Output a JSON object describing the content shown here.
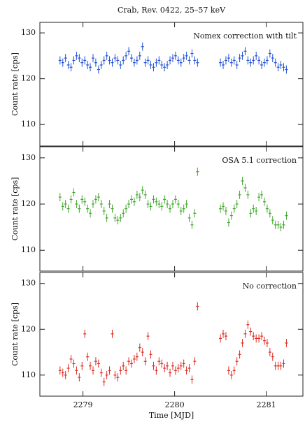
{
  "chart_data": [
    {
      "type": "scatter",
      "title": "Crab, Rev. 0422, 25–57 keV",
      "annotation": "Nomex correction with tilt",
      "y_label": "Count rate [cps]",
      "color": "#1f4fd6",
      "xlim": [
        2278.53,
        2281.4
      ],
      "ylim": [
        105.3,
        132.3
      ],
      "yticks": [
        110,
        120,
        130
      ],
      "yerr": 0.9,
      "x": [
        2278.75,
        2278.78,
        2278.81,
        2278.84,
        2278.87,
        2278.9,
        2278.93,
        2278.96,
        2278.99,
        2279.02,
        2279.05,
        2279.08,
        2279.11,
        2279.14,
        2279.17,
        2279.2,
        2279.23,
        2279.26,
        2279.29,
        2279.32,
        2279.35,
        2279.38,
        2279.41,
        2279.44,
        2279.47,
        2279.5,
        2279.53,
        2279.56,
        2279.59,
        2279.62,
        2279.65,
        2279.68,
        2279.71,
        2279.74,
        2279.77,
        2279.8,
        2279.83,
        2279.86,
        2279.89,
        2279.92,
        2279.95,
        2279.98,
        2280.01,
        2280.04,
        2280.07,
        2280.1,
        2280.13,
        2280.16,
        2280.19,
        2280.22,
        2280.25,
        2280.5,
        2280.53,
        2280.56,
        2280.59,
        2280.62,
        2280.65,
        2280.68,
        2280.71,
        2280.74,
        2280.77,
        2280.8,
        2280.83,
        2280.86,
        2280.89,
        2280.92,
        2280.95,
        2280.98,
        2281.01,
        2281.04,
        2281.07,
        2281.1,
        2281.13,
        2281.16,
        2281.19,
        2281.22
      ],
      "values": [
        124,
        123.5,
        124.5,
        123,
        122.5,
        124,
        125,
        124.5,
        123.5,
        124,
        123,
        122.5,
        124.5,
        123.5,
        122,
        123,
        124,
        125,
        124,
        123.5,
        124.5,
        124,
        123,
        124,
        125,
        126,
        124.5,
        123.5,
        124,
        125,
        127,
        123.5,
        124,
        123,
        122.5,
        123.5,
        124,
        123,
        122.5,
        123,
        124,
        124.5,
        125,
        124,
        123.5,
        124.5,
        125,
        124,
        125.5,
        124,
        123.5,
        123.5,
        123,
        124,
        124.5,
        123.5,
        124,
        123,
        124.5,
        125,
        126,
        124,
        123.5,
        124,
        125,
        124,
        123,
        123.5,
        124,
        125.5,
        124.5,
        123.5,
        122.5,
        123,
        122.5,
        122
      ]
    },
    {
      "type": "scatter",
      "annotation": "OSA 5.1 correction",
      "y_label": "Count rate [cps]",
      "color": "#3fa82a",
      "xlim": [
        2278.53,
        2281.4
      ],
      "ylim": [
        105.5,
        132.4
      ],
      "yticks": [
        110,
        120,
        130
      ],
      "yerr": 0.9,
      "x": [
        2278.75,
        2278.78,
        2278.81,
        2278.84,
        2278.87,
        2278.9,
        2278.93,
        2278.96,
        2278.99,
        2279.02,
        2279.05,
        2279.08,
        2279.11,
        2279.14,
        2279.17,
        2279.2,
        2279.23,
        2279.26,
        2279.29,
        2279.32,
        2279.35,
        2279.38,
        2279.41,
        2279.44,
        2279.47,
        2279.5,
        2279.53,
        2279.56,
        2279.59,
        2279.62,
        2279.65,
        2279.68,
        2279.71,
        2279.74,
        2279.77,
        2279.8,
        2279.83,
        2279.86,
        2279.89,
        2279.92,
        2279.95,
        2279.98,
        2280.01,
        2280.04,
        2280.07,
        2280.1,
        2280.13,
        2280.16,
        2280.19,
        2280.22,
        2280.25,
        2280.5,
        2280.53,
        2280.56,
        2280.59,
        2280.62,
        2280.65,
        2280.68,
        2280.71,
        2280.74,
        2280.77,
        2280.8,
        2280.83,
        2280.86,
        2280.89,
        2280.92,
        2280.95,
        2280.98,
        2281.01,
        2281.04,
        2281.07,
        2281.1,
        2281.13,
        2281.16,
        2281.19,
        2281.22
      ],
      "values": [
        121.5,
        119.5,
        120,
        119,
        121,
        122.5,
        120,
        119,
        121,
        120.5,
        119,
        118,
        120,
        121,
        121.5,
        120,
        118.5,
        117,
        120,
        119,
        117,
        116.5,
        117,
        118,
        119,
        120,
        121,
        120.5,
        122,
        121.5,
        123,
        122,
        120,
        119.5,
        121,
        120.5,
        120,
        119.5,
        121,
        120,
        119,
        120,
        121,
        120,
        118.5,
        119,
        120,
        117,
        115.5,
        118,
        127,
        119,
        119.5,
        118.5,
        116,
        117.5,
        119,
        120,
        122,
        125,
        123.5,
        122,
        118,
        119,
        118.5,
        121.5,
        122,
        120.5,
        119,
        118,
        116.5,
        115.5,
        115.5,
        115,
        115.5,
        117.5
      ]
    },
    {
      "type": "scatter",
      "annotation": "No correction",
      "y_label": "Count rate [cps]",
      "x_label": "Time [MJD]",
      "color": "#e0281e",
      "xlim": [
        2278.53,
        2281.4
      ],
      "ylim": [
        105.4,
        132.4
      ],
      "yticks": [
        110,
        120,
        130
      ],
      "xticks": [
        2279,
        2280,
        2281
      ],
      "yerr": 0.9,
      "x": [
        2278.75,
        2278.78,
        2278.81,
        2278.84,
        2278.87,
        2278.9,
        2278.93,
        2278.96,
        2278.99,
        2279.02,
        2279.05,
        2279.08,
        2279.11,
        2279.14,
        2279.17,
        2279.2,
        2279.23,
        2279.26,
        2279.29,
        2279.32,
        2279.35,
        2279.38,
        2279.41,
        2279.44,
        2279.47,
        2279.5,
        2279.53,
        2279.56,
        2279.59,
        2279.62,
        2279.65,
        2279.68,
        2279.71,
        2279.74,
        2279.77,
        2279.8,
        2279.83,
        2279.86,
        2279.89,
        2279.92,
        2279.95,
        2279.98,
        2280.01,
        2280.04,
        2280.07,
        2280.1,
        2280.13,
        2280.16,
        2280.19,
        2280.22,
        2280.25,
        2280.5,
        2280.53,
        2280.56,
        2280.59,
        2280.62,
        2280.65,
        2280.68,
        2280.71,
        2280.74,
        2280.77,
        2280.8,
        2280.83,
        2280.86,
        2280.89,
        2280.92,
        2280.95,
        2280.98,
        2281.01,
        2281.04,
        2281.07,
        2281.1,
        2281.13,
        2281.16,
        2281.19,
        2281.22
      ],
      "values": [
        111,
        110.5,
        110,
        111.5,
        113.5,
        112.5,
        111,
        109.5,
        112,
        119,
        114,
        112,
        111,
        113,
        112.5,
        110.5,
        108.5,
        110,
        111,
        119,
        110,
        109.5,
        111,
        112,
        111,
        113,
        112.5,
        113.5,
        114,
        116,
        115,
        113,
        118.5,
        114.5,
        112,
        111,
        113,
        112.5,
        111.5,
        112,
        110.5,
        112,
        111,
        111.5,
        112,
        112.5,
        111,
        111.5,
        109,
        113,
        125,
        118,
        119,
        118.5,
        111,
        110,
        111,
        113,
        114.5,
        117,
        119,
        121,
        119.5,
        118.5,
        118,
        118,
        118.5,
        117.5,
        117,
        115,
        114,
        112,
        112,
        112,
        112.5,
        117
      ]
    }
  ]
}
